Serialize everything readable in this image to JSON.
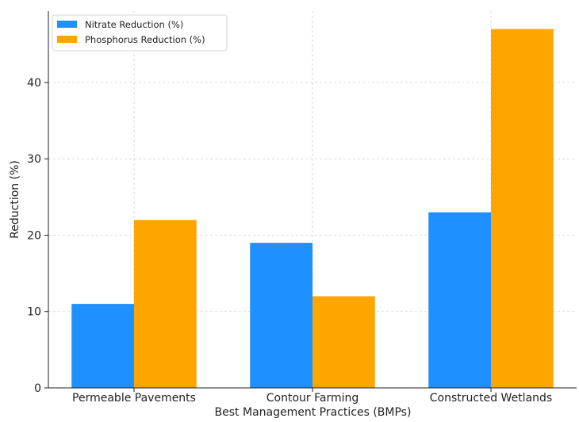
{
  "chart_data": {
    "type": "bar",
    "title": "",
    "xlabel": "Best Management Practices (BMPs)",
    "ylabel": "Reduction (%)",
    "categories": [
      "Permeable Pavements",
      "Contour Farming",
      "Constructed Wetlands"
    ],
    "series": [
      {
        "name": "Nitrate Reduction (%)",
        "values": [
          11,
          19,
          23
        ],
        "color": "#1e90ff"
      },
      {
        "name": "Phosphorus Reduction (%)",
        "values": [
          22,
          12,
          47
        ],
        "color": "#ffa500"
      }
    ],
    "ylim": [
      0,
      49.35
    ],
    "yticks": [
      0,
      10,
      20,
      30,
      40
    ],
    "grid": true,
    "legend_position": "top-left"
  }
}
